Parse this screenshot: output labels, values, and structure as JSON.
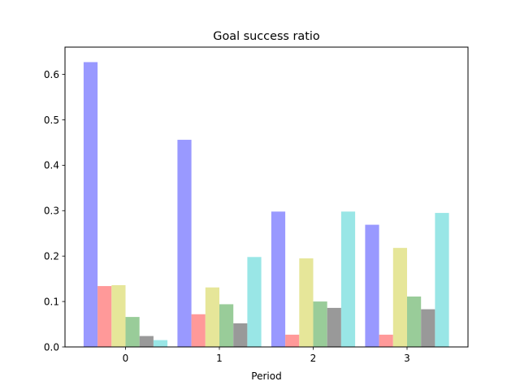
{
  "chart_data": {
    "type": "bar",
    "title": "Goal success ratio",
    "xlabel": "Period",
    "ylabel": "",
    "categories": [
      "0",
      "1",
      "2",
      "3"
    ],
    "ylim": [
      0,
      0.66
    ],
    "yticks": [
      "0.0",
      "0.1",
      "0.2",
      "0.3",
      "0.4",
      "0.5",
      "0.6"
    ],
    "grid": false,
    "legend": "none",
    "series": [
      {
        "color": "#9999ff",
        "values": [
          0.627,
          0.456,
          0.298,
          0.269
        ]
      },
      {
        "color": "#ff9999",
        "values": [
          0.134,
          0.072,
          0.027,
          0.027
        ]
      },
      {
        "color": "#e6e699",
        "values": [
          0.136,
          0.131,
          0.195,
          0.218
        ]
      },
      {
        "color": "#99cc99",
        "values": [
          0.066,
          0.094,
          0.1,
          0.111
        ]
      },
      {
        "color": "#999999",
        "values": [
          0.024,
          0.052,
          0.086,
          0.083
        ]
      },
      {
        "color": "#99e6e6",
        "values": [
          0.015,
          0.198,
          0.298,
          0.295
        ]
      }
    ]
  }
}
